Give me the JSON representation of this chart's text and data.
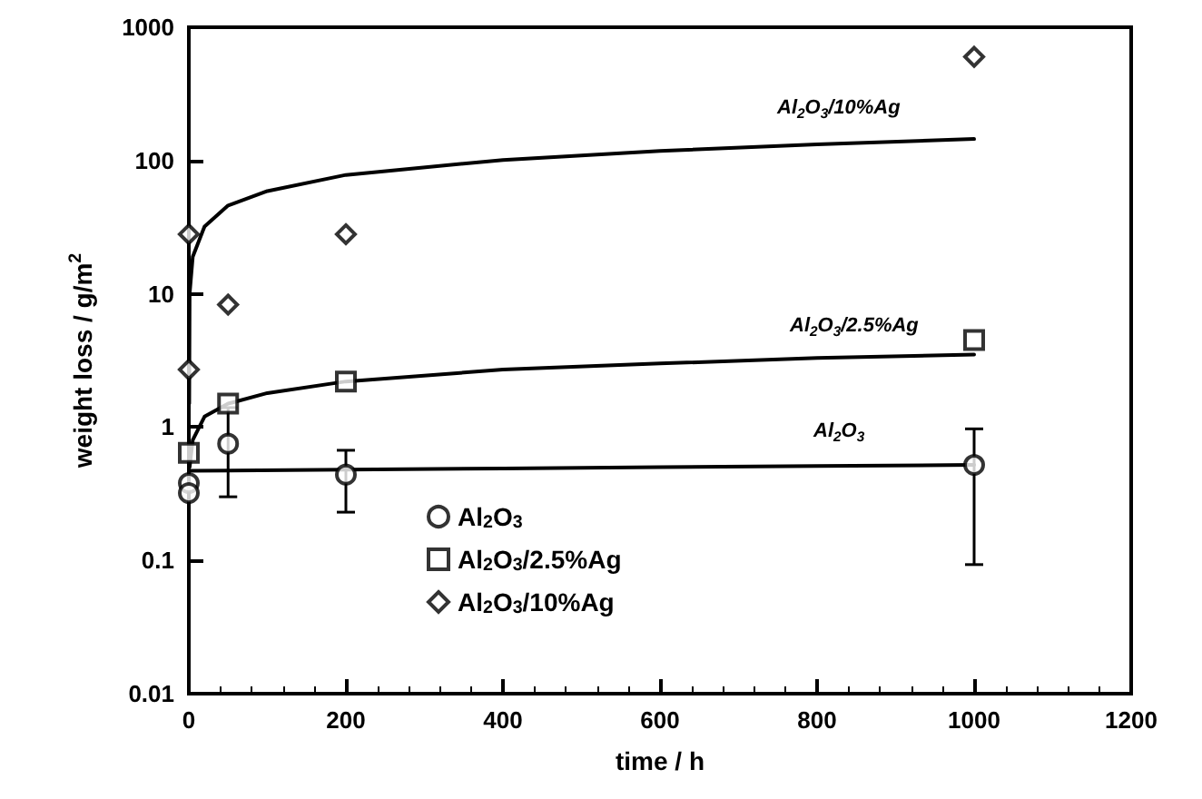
{
  "chart_data": {
    "type": "scatter",
    "xlabel": "time / h",
    "ylabel": "weight loss / g/m$^{2}$",
    "xlim": [
      0,
      1200
    ],
    "xticks": [
      0,
      200,
      400,
      600,
      800,
      1000,
      1200
    ],
    "ylim": [
      0.01,
      1000
    ],
    "yticks": [
      0.01,
      0.1,
      1,
      10,
      100,
      1000
    ],
    "log": "y",
    "grid": false,
    "legend": "bottom",
    "series": [
      {
        "name": "Al$_{2}$O$_{3}$",
        "color": "#000000",
        "marker": "circle",
        "x": [
          0,
          0,
          50,
          200,
          1000
        ],
        "values": [
          0.38,
          0.32,
          0.75,
          0.44,
          0.52
        ],
        "errors": [
          null,
          null,
          [
            0.3,
            1.4
          ],
          [
            0.23,
            0.67
          ],
          [
            0.093,
            0.97
          ]
        ]
      },
      {
        "name": "Al$_{2}$O$_{3}$/2.5%Ag",
        "color": "#000000",
        "marker": "square",
        "x": [
          0,
          50,
          200,
          1000
        ],
        "values": [
          0.64,
          1.5,
          2.2,
          4.5
        ]
      },
      {
        "name": "Al$_{2}$O$_{3}$/10%Ag",
        "color": "#000000",
        "marker": "diamond",
        "x": [
          0,
          0,
          50,
          200,
          1000
        ],
        "values": [
          28,
          2.7,
          8.3,
          28,
          600
        ]
      },
      {
        "type": "line",
        "color": "#000000",
        "marker": "none",
        "x": [
          0,
          200,
          400,
          600,
          800,
          1000
        ],
        "values": [
          0.47,
          0.48,
          0.49,
          0.5,
          0.51,
          0.52
        ]
      },
      {
        "type": "line",
        "color": "#000000",
        "marker": "none",
        "x": [
          1,
          5,
          20,
          50,
          100,
          200,
          400,
          600,
          800,
          1000
        ],
        "values": [
          0.5,
          0.8,
          1.2,
          1.5,
          1.8,
          2.2,
          2.7,
          3.0,
          3.3,
          3.5
        ]
      },
      {
        "type": "line",
        "color": "#000000",
        "marker": "none",
        "x": [
          0.5,
          1,
          5,
          20,
          50,
          100,
          200,
          400,
          600,
          800,
          1000
        ],
        "values": [
          1.5,
          10,
          19,
          32,
          46,
          59,
          78,
          101,
          118,
          132,
          145
        ]
      }
    ],
    "annotations": [
      "Al$_{2}$O$_{3}$/10%Ag",
      "Al$_{2}$O$_{3}$/2.5%Ag",
      "Al$_{2}$O$_{3}$"
    ]
  }
}
